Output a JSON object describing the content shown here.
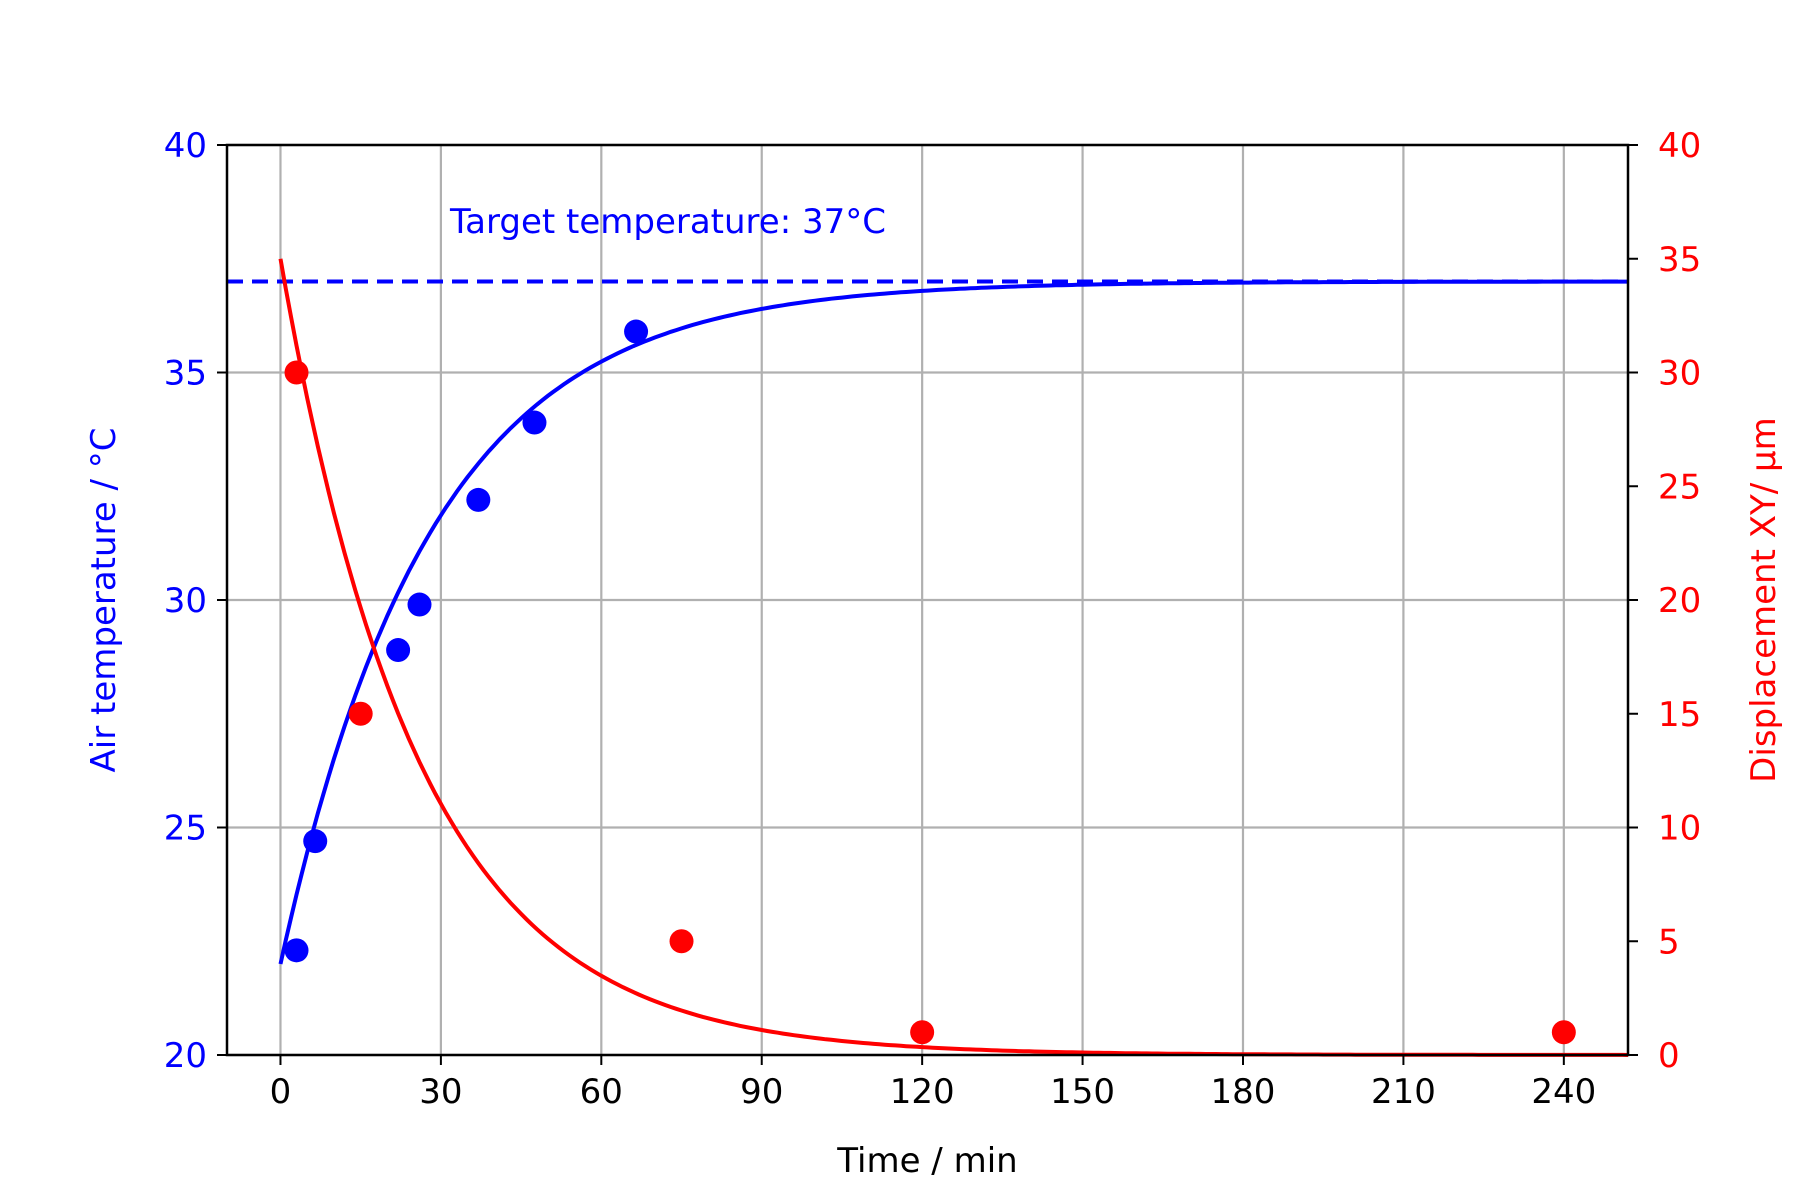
{
  "chart_data": {
    "type": "scatter",
    "x_axis": {
      "label": "Time / min",
      "range": [
        -10,
        252
      ],
      "ticks": [
        "0",
        "30",
        "60",
        "90",
        "120",
        "150",
        "180",
        "210",
        "240"
      ],
      "tick_values": [
        0,
        30,
        60,
        90,
        120,
        150,
        180,
        210,
        240
      ]
    },
    "y_left": {
      "label": "Air temperature / °C",
      "range": [
        20,
        40
      ],
      "ticks": [
        "20",
        "25",
        "30",
        "35",
        "40"
      ],
      "tick_values": [
        20,
        25,
        30,
        35,
        40
      ],
      "color": "#0000ff"
    },
    "y_right": {
      "label": "Displacement XY/ μm",
      "range": [
        0,
        40
      ],
      "ticks": [
        "0",
        "5",
        "10",
        "15",
        "20",
        "25",
        "30",
        "35",
        "40"
      ],
      "tick_values": [
        0,
        5,
        10,
        15,
        20,
        25,
        30,
        35,
        40
      ],
      "color": "#ff0000"
    },
    "grid": true,
    "annotation": "Target temperature: 37°C",
    "series": [
      {
        "axis": "left",
        "kind": "points",
        "color": "#0000ff",
        "x": [
          3,
          6.5,
          22,
          26,
          37,
          47.5,
          66.5
        ],
        "y": [
          22.3,
          24.7,
          28.9,
          29.9,
          32.2,
          33.9,
          35.9
        ]
      },
      {
        "axis": "left",
        "kind": "fit-curve",
        "color": "#0000ff",
        "function": "37 - 15*exp(-t/28)",
        "x_range": [
          0,
          252
        ]
      },
      {
        "axis": "left",
        "kind": "reference-line",
        "color": "#0000ff",
        "style": "dashed",
        "y": 37
      },
      {
        "axis": "right",
        "kind": "points",
        "color": "#ff0000",
        "x": [
          3,
          15,
          75,
          120,
          240
        ],
        "y": [
          30,
          15,
          5,
          1,
          1
        ]
      },
      {
        "axis": "right",
        "kind": "fit-curve",
        "color": "#ff0000",
        "function": "35*exp(-t/26)",
        "x_range": [
          0,
          252
        ]
      }
    ]
  }
}
